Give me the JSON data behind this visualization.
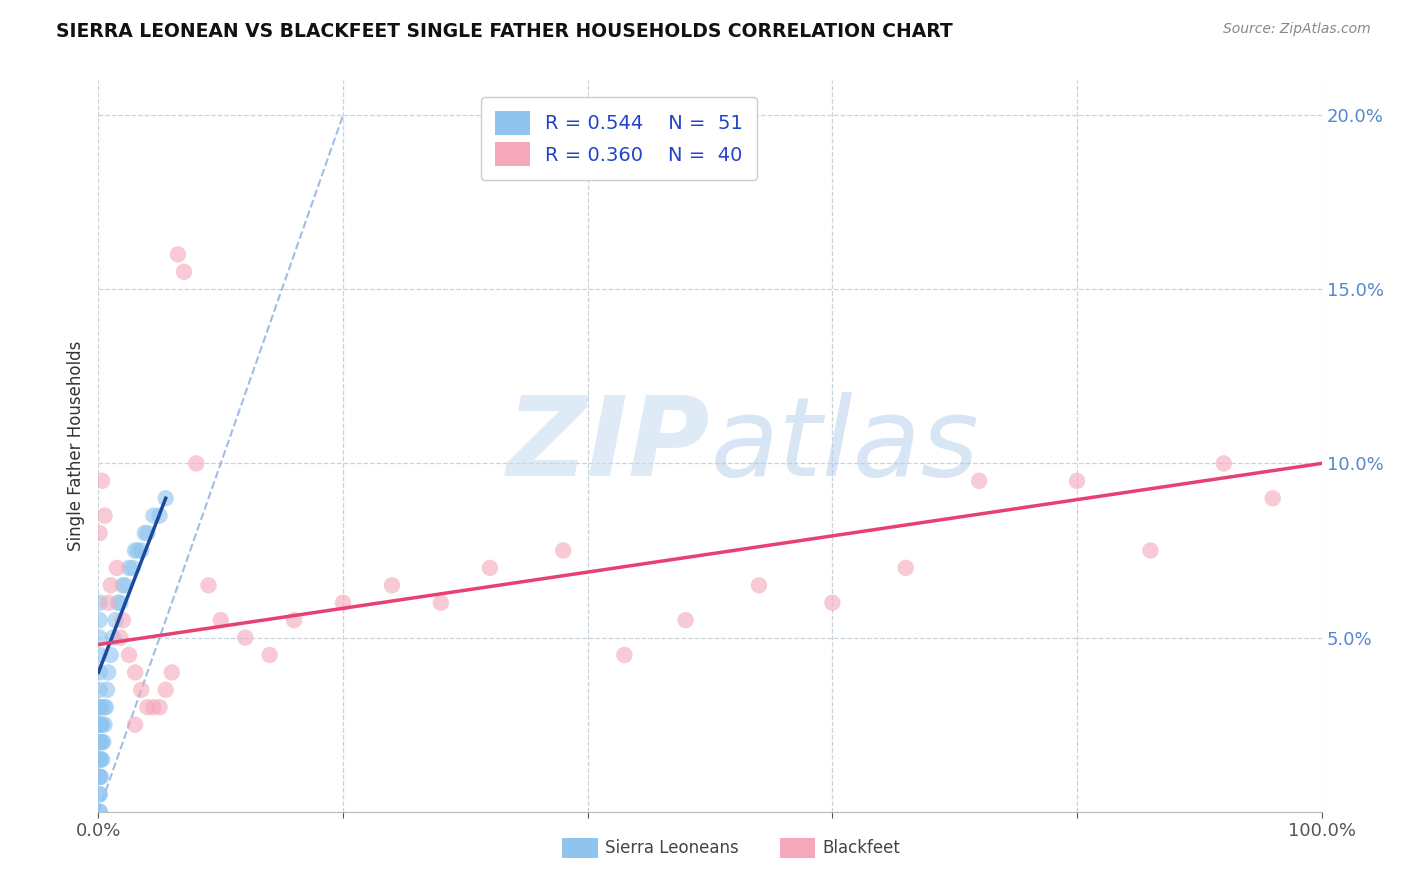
{
  "title": "SIERRA LEONEAN VS BLACKFEET SINGLE FATHER HOUSEHOLDS CORRELATION CHART",
  "source": "Source: ZipAtlas.com",
  "ylabel": "Single Father Households",
  "xlim": [
    0,
    1.0
  ],
  "ylim": [
    0,
    0.21
  ],
  "xticks": [
    0.0,
    0.2,
    0.4,
    0.6,
    0.8,
    1.0
  ],
  "yticks": [
    0.0,
    0.05,
    0.1,
    0.15,
    0.2
  ],
  "legend_r1": "R = 0.544",
  "legend_n1": "N =  51",
  "legend_r2": "R = 0.360",
  "legend_n2": "N =  40",
  "sierra_color": "#8EC4EE",
  "blackfeet_color": "#F4A8BA",
  "sierra_line_color": "#1A4A9E",
  "blackfeet_line_color": "#E84070",
  "diagonal_color": "#8AACE0",
  "watermark_zip_color": "#C8DCF0",
  "watermark_atlas_color": "#B0CCEC",
  "grid_color": "#C8D4DC",
  "tick_color": "#5588CC",
  "title_color": "#111111",
  "source_color": "#888888",
  "background_color": "#FFFFFF",
  "sierra_x": [
    0.001,
    0.001,
    0.001,
    0.001,
    0.001,
    0.001,
    0.001,
    0.001,
    0.001,
    0.001,
    0.001,
    0.001,
    0.001,
    0.001,
    0.001,
    0.001,
    0.001,
    0.001,
    0.001,
    0.001,
    0.002,
    0.002,
    0.002,
    0.002,
    0.002,
    0.003,
    0.003,
    0.003,
    0.004,
    0.005,
    0.005,
    0.006,
    0.007,
    0.008,
    0.01,
    0.012,
    0.014,
    0.016,
    0.018,
    0.02,
    0.022,
    0.025,
    0.028,
    0.03,
    0.032,
    0.035,
    0.038,
    0.04,
    0.045,
    0.05,
    0.055
  ],
  "sierra_y": [
    0.0,
    0.005,
    0.01,
    0.015,
    0.02,
    0.025,
    0.03,
    0.035,
    0.04,
    0.045,
    0.05,
    0.055,
    0.06,
    0.0,
    0.005,
    0.01,
    0.015,
    0.02,
    0.025,
    0.03,
    0.01,
    0.015,
    0.02,
    0.025,
    0.03,
    0.015,
    0.02,
    0.025,
    0.02,
    0.025,
    0.03,
    0.03,
    0.035,
    0.04,
    0.045,
    0.05,
    0.055,
    0.06,
    0.06,
    0.065,
    0.065,
    0.07,
    0.07,
    0.075,
    0.075,
    0.075,
    0.08,
    0.08,
    0.085,
    0.085,
    0.09
  ],
  "blackfeet_x": [
    0.001,
    0.003,
    0.005,
    0.008,
    0.01,
    0.015,
    0.018,
    0.02,
    0.025,
    0.03,
    0.035,
    0.04,
    0.05,
    0.06,
    0.065,
    0.07,
    0.08,
    0.09,
    0.1,
    0.12,
    0.14,
    0.16,
    0.2,
    0.24,
    0.28,
    0.32,
    0.38,
    0.43,
    0.48,
    0.54,
    0.6,
    0.66,
    0.72,
    0.8,
    0.86,
    0.92,
    0.96,
    0.03,
    0.045,
    0.055
  ],
  "blackfeet_y": [
    0.08,
    0.095,
    0.085,
    0.06,
    0.065,
    0.07,
    0.05,
    0.055,
    0.045,
    0.04,
    0.035,
    0.03,
    0.03,
    0.04,
    0.16,
    0.155,
    0.1,
    0.065,
    0.055,
    0.05,
    0.045,
    0.055,
    0.06,
    0.065,
    0.06,
    0.07,
    0.075,
    0.045,
    0.055,
    0.065,
    0.06,
    0.07,
    0.095,
    0.095,
    0.075,
    0.1,
    0.09,
    0.025,
    0.03,
    0.035
  ],
  "blackfeet_line_x0": 0.0,
  "blackfeet_line_y0": 0.048,
  "blackfeet_line_x1": 1.0,
  "blackfeet_line_y1": 0.1,
  "sierra_line_x0": 0.0,
  "sierra_line_y0": 0.04,
  "sierra_line_x1": 0.055,
  "sierra_line_y1": 0.09
}
